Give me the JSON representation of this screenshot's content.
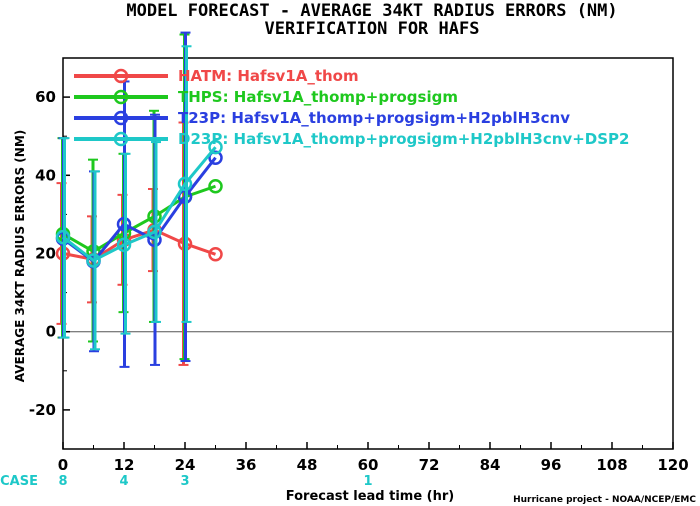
{
  "chart_data": {
    "type": "line",
    "title": "MODEL FORECAST - AVERAGE 34KT RADIUS ERRORS (NM)",
    "subtitle": "VERIFICATION FOR HAFS",
    "xlabel": "Forecast lead time (hr)",
    "ylabel": "AVERAGE 34KT RADIUS ERRORS (NM)",
    "xlim": [
      0,
      120
    ],
    "ylim": [
      -30,
      70
    ],
    "xticks": [
      0,
      12,
      24,
      36,
      48,
      60,
      72,
      84,
      96,
      108,
      120
    ],
    "yticks": [
      -20,
      0,
      20,
      40,
      60
    ],
    "x": [
      0,
      6,
      12,
      18,
      24,
      30
    ],
    "case_label": "#CASE",
    "cases": [
      {
        "x": 0,
        "n": "8"
      },
      {
        "x": 12,
        "n": "4"
      },
      {
        "x": 24,
        "n": "3"
      },
      {
        "x": 60,
        "n": "1"
      }
    ],
    "credit": "Hurricane project - NOAA/NCEP/EMC",
    "series": [
      {
        "name": "HATM: Hafsv1A_thom",
        "color": "#f04848",
        "values": [
          20,
          18.5,
          23.5,
          26,
          22.5,
          19.8
        ],
        "err_low": [
          2,
          7.5,
          12,
          15.5,
          -8.5
        ],
        "err_high": [
          38,
          29.5,
          35,
          36.5,
          53.5
        ]
      },
      {
        "name": "THPS: Hafsv1A_thomp+progsigm",
        "color": "#1ec81e",
        "values": [
          25,
          20.5,
          25.2,
          29.5,
          34.5,
          37.2
        ],
        "err_low": [
          -1.5,
          -2.5,
          5,
          2.5,
          -7
        ],
        "err_high": [
          49.5,
          44,
          45.5,
          56.5,
          76
        ]
      },
      {
        "name": "T23P: Hafsv1A_thomp+progsigm+H2pblH3cnv",
        "color": "#2a3fe0",
        "values": [
          23.8,
          18,
          27.5,
          23.5,
          34.5,
          44.5
        ],
        "err_low": [
          -1.5,
          -5,
          -9,
          -8.5,
          -7.5
        ],
        "err_high": [
          49.5,
          41,
          64,
          55.5,
          76.5
        ]
      },
      {
        "name": "D23P: Hafsv1A_thomp+progsigm+H2pblH3cnv+DSP2",
        "color": "#1ec8c8",
        "values": [
          24.2,
          18.2,
          22.2,
          25.5,
          37.8,
          47.2
        ],
        "err_low": [
          -1.5,
          -4.5,
          -0.5,
          2.5,
          2.5
        ],
        "err_high": [
          49.5,
          41,
          45.5,
          48.5,
          73
        ]
      }
    ]
  }
}
